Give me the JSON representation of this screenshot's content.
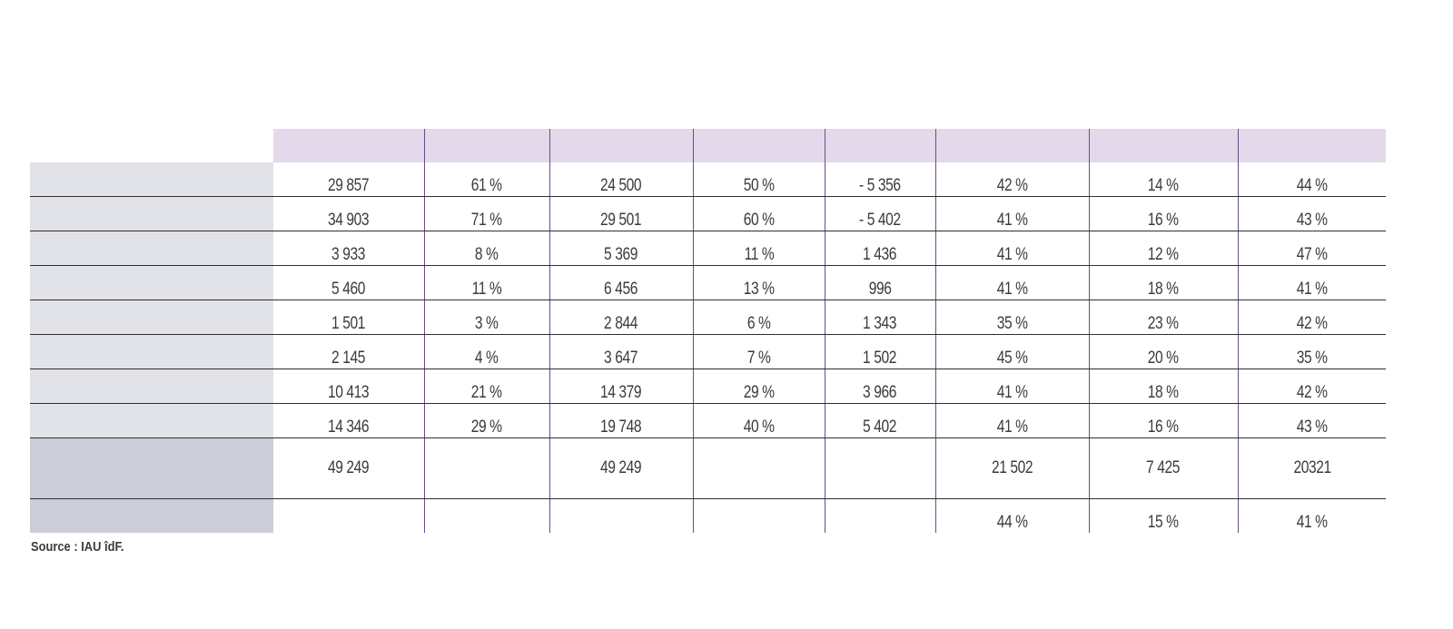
{
  "table": {
    "rows": [
      [
        "29 857",
        "61 %",
        "24 500",
        "50 %",
        "- 5 356",
        "42 %",
        "14 %",
        "44 %"
      ],
      [
        "34 903",
        "71 %",
        "29 501",
        "60 %",
        "- 5 402",
        "41 %",
        "16 %",
        "43 %"
      ],
      [
        "3 933",
        "8 %",
        "5 369",
        "11 %",
        "1 436",
        "41 %",
        "12 %",
        "47 %"
      ],
      [
        "5 460",
        "11 %",
        "6 456",
        "13 %",
        "996",
        "41 %",
        "18 %",
        "41 %"
      ],
      [
        "1 501",
        "3 %",
        "2 844",
        "6 %",
        "1 343",
        "35 %",
        "23 %",
        "42 %"
      ],
      [
        "2 145",
        "4 %",
        "3 647",
        "7 %",
        "1 502",
        "45 %",
        "20 %",
        "35 %"
      ],
      [
        "10 413",
        "21 %",
        "14 379",
        "29 %",
        "3 966",
        "41 %",
        "18 %",
        "42 %"
      ],
      [
        "14 346",
        "29 %",
        "19 748",
        "40 %",
        "5 402",
        "41 %",
        "16 %",
        "43 %"
      ]
    ],
    "total_row": [
      "49 249",
      "",
      "49 249",
      "",
      "",
      "21 502",
      "7 425",
      "20321"
    ],
    "share_row": [
      "",
      "",
      "",
      "",
      "",
      "44 %",
      "15 %",
      "41 %"
    ]
  },
  "source": "Source : IAU îdF."
}
